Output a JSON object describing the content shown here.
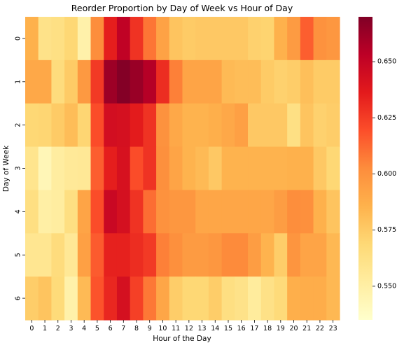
{
  "chart_data": {
    "type": "heatmap",
    "title": "Reorder Proportion by Day of Week vs Hour of Day",
    "xlabel": "Hour of the Day",
    "ylabel": "Day of Week",
    "x": [
      "0",
      "1",
      "2",
      "3",
      "4",
      "5",
      "6",
      "7",
      "8",
      "9",
      "10",
      "11",
      "12",
      "13",
      "14",
      "15",
      "16",
      "17",
      "18",
      "19",
      "20",
      "21",
      "22",
      "23"
    ],
    "y": [
      "0",
      "1",
      "2",
      "3",
      "4",
      "5",
      "6"
    ],
    "values": [
      [
        0.586,
        0.561,
        0.563,
        0.569,
        0.548,
        0.602,
        0.635,
        0.652,
        0.628,
        0.609,
        0.593,
        0.578,
        0.575,
        0.576,
        0.576,
        0.576,
        0.576,
        0.572,
        0.571,
        0.586,
        0.596,
        0.615,
        0.6,
        0.598
      ],
      [
        0.59,
        0.59,
        0.566,
        0.575,
        0.597,
        0.626,
        0.662,
        0.669,
        0.663,
        0.655,
        0.63,
        0.606,
        0.592,
        0.592,
        0.592,
        0.582,
        0.581,
        0.581,
        0.575,
        0.572,
        0.574,
        0.58,
        0.575,
        0.575
      ],
      [
        0.569,
        0.57,
        0.575,
        0.581,
        0.57,
        0.62,
        0.644,
        0.643,
        0.636,
        0.628,
        0.6,
        0.59,
        0.585,
        0.585,
        0.587,
        0.59,
        0.594,
        0.576,
        0.576,
        0.576,
        0.563,
        0.578,
        0.572,
        0.574
      ],
      [
        0.559,
        0.543,
        0.552,
        0.555,
        0.556,
        0.615,
        0.635,
        0.642,
        0.62,
        0.628,
        0.601,
        0.592,
        0.585,
        0.582,
        0.576,
        0.585,
        0.585,
        0.585,
        0.585,
        0.585,
        0.586,
        0.586,
        0.576,
        0.569
      ],
      [
        0.564,
        0.55,
        0.552,
        0.564,
        0.592,
        0.62,
        0.648,
        0.643,
        0.628,
        0.611,
        0.6,
        0.598,
        0.598,
        0.591,
        0.591,
        0.591,
        0.591,
        0.591,
        0.591,
        0.595,
        0.602,
        0.601,
        0.586,
        0.578
      ],
      [
        0.558,
        0.558,
        0.566,
        0.556,
        0.594,
        0.616,
        0.634,
        0.634,
        0.63,
        0.626,
        0.606,
        0.601,
        0.596,
        0.596,
        0.598,
        0.603,
        0.603,
        0.595,
        0.585,
        0.574,
        0.599,
        0.592,
        0.592,
        0.583
      ],
      [
        0.574,
        0.578,
        0.567,
        0.548,
        0.582,
        0.618,
        0.632,
        0.643,
        0.624,
        0.608,
        0.591,
        0.574,
        0.569,
        0.569,
        0.574,
        0.564,
        0.561,
        0.553,
        0.562,
        0.567,
        0.587,
        0.588,
        0.588,
        0.583
      ]
    ],
    "colorbar": {
      "min": 0.535,
      "max": 0.67,
      "ticks": [
        0.55,
        0.575,
        0.6,
        0.625,
        0.65
      ],
      "tick_labels": [
        "0.550",
        "0.575",
        "0.600",
        "0.625",
        "0.650"
      ]
    },
    "colormap": "YlOrRd",
    "colormap_stops": [
      "#ffffcc",
      "#ffeda0",
      "#fed976",
      "#feb24c",
      "#fd8d3c",
      "#fc4e2a",
      "#e31a1c",
      "#bd0026",
      "#800026"
    ],
    "grid": false,
    "legend": "colorbar-right"
  }
}
